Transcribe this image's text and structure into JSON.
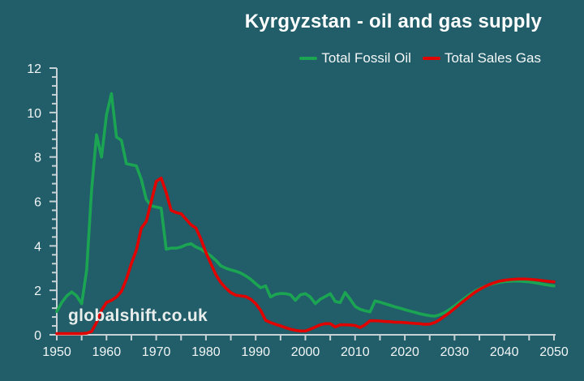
{
  "title": "Kyrgyzstan - oil and gas supply",
  "watermark": "globalshift.co.uk",
  "colors": {
    "background": "#215E69",
    "oil_line": "#1BA553",
    "gas_line": "#E00400",
    "axis": "#C6D2D5",
    "tick_label": "#F2F5F5",
    "title_text": "#FFFFFF",
    "watermark_text": "#E9EDEC"
  },
  "legend": [
    {
      "label": "Total Fossil Oil",
      "series_key": "oil"
    },
    {
      "label": "Total Sales Gas",
      "series_key": "gas"
    }
  ],
  "chart_data": {
    "type": "line",
    "title": "Kyrgyzstan - oil and gas supply",
    "xlabel": "",
    "ylabel": "",
    "xlim": [
      1950,
      2050
    ],
    "ylim": [
      0,
      12
    ],
    "x_ticks": [
      1950,
      1960,
      1970,
      1980,
      1990,
      2000,
      2010,
      2020,
      2030,
      2040,
      2050
    ],
    "x_minor_step": 5,
    "y_ticks": [
      0,
      2,
      4,
      6,
      8,
      10,
      12
    ],
    "y_minor_step": 0.4,
    "grid": false,
    "legend_position": "top-right",
    "x": [
      1950,
      1951,
      1952,
      1953,
      1954,
      1955,
      1956,
      1957,
      1958,
      1959,
      1960,
      1961,
      1962,
      1963,
      1964,
      1965,
      1966,
      1967,
      1968,
      1969,
      1970,
      1971,
      1972,
      1973,
      1974,
      1975,
      1976,
      1977,
      1978,
      1979,
      1980,
      1981,
      1982,
      1983,
      1984,
      1985,
      1986,
      1987,
      1988,
      1989,
      1990,
      1991,
      1992,
      1993,
      1994,
      1995,
      1996,
      1997,
      1998,
      1999,
      2000,
      2001,
      2002,
      2003,
      2004,
      2005,
      2006,
      2007,
      2008,
      2009,
      2010,
      2011,
      2012,
      2013,
      2014,
      2015,
      2016,
      2017,
      2018,
      2019,
      2020,
      2021,
      2022,
      2023,
      2024,
      2025,
      2026,
      2027,
      2028,
      2029,
      2030,
      2031,
      2032,
      2033,
      2034,
      2035,
      2036,
      2037,
      2038,
      2039,
      2040,
      2041,
      2042,
      2043,
      2044,
      2045,
      2046,
      2047,
      2048,
      2049,
      2050
    ],
    "series": [
      {
        "name": "Total Fossil Oil",
        "color": "#1BA553",
        "values": [
          1.05,
          1.45,
          1.75,
          1.93,
          1.75,
          1.4,
          2.9,
          6.5,
          9.0,
          8.0,
          9.9,
          10.85,
          8.9,
          8.75,
          7.7,
          7.65,
          7.6,
          7.0,
          6.1,
          5.8,
          5.75,
          5.7,
          3.85,
          3.9,
          3.9,
          3.95,
          4.05,
          4.1,
          3.95,
          3.85,
          3.7,
          3.55,
          3.35,
          3.1,
          3.0,
          2.92,
          2.86,
          2.78,
          2.65,
          2.5,
          2.3,
          2.12,
          2.2,
          1.7,
          1.82,
          1.86,
          1.85,
          1.8,
          1.55,
          1.8,
          1.85,
          1.7,
          1.4,
          1.6,
          1.72,
          1.85,
          1.5,
          1.45,
          1.9,
          1.6,
          1.28,
          1.15,
          1.08,
          1.03,
          1.52,
          1.47,
          1.4,
          1.33,
          1.26,
          1.2,
          1.13,
          1.07,
          1.01,
          0.95,
          0.9,
          0.86,
          0.84,
          0.9,
          1.0,
          1.14,
          1.3,
          1.47,
          1.64,
          1.8,
          1.95,
          2.07,
          2.17,
          2.25,
          2.31,
          2.36,
          2.39,
          2.41,
          2.42,
          2.42,
          2.4,
          2.38,
          2.35,
          2.31,
          2.27,
          2.23,
          2.2
        ]
      },
      {
        "name": "Total Sales Gas",
        "color": "#E00400",
        "values": [
          0.05,
          0.05,
          0.05,
          0.05,
          0.05,
          0.05,
          0.07,
          0.15,
          0.55,
          1.1,
          1.45,
          1.55,
          1.7,
          1.95,
          2.5,
          3.2,
          3.8,
          4.8,
          5.1,
          6.0,
          6.9,
          7.05,
          6.4,
          5.6,
          5.5,
          5.45,
          5.2,
          4.95,
          4.8,
          4.3,
          3.7,
          3.2,
          2.7,
          2.35,
          2.1,
          1.9,
          1.78,
          1.75,
          1.72,
          1.6,
          1.4,
          1.1,
          0.65,
          0.55,
          0.47,
          0.4,
          0.32,
          0.25,
          0.2,
          0.17,
          0.17,
          0.25,
          0.35,
          0.45,
          0.5,
          0.5,
          0.35,
          0.45,
          0.45,
          0.44,
          0.42,
          0.33,
          0.45,
          0.63,
          0.63,
          0.62,
          0.6,
          0.59,
          0.57,
          0.56,
          0.55,
          0.53,
          0.51,
          0.5,
          0.47,
          0.48,
          0.55,
          0.68,
          0.84,
          1.0,
          1.18,
          1.37,
          1.55,
          1.73,
          1.9,
          2.04,
          2.16,
          2.26,
          2.34,
          2.41,
          2.45,
          2.48,
          2.5,
          2.51,
          2.51,
          2.5,
          2.48,
          2.46,
          2.43,
          2.4,
          2.38
        ]
      }
    ]
  }
}
